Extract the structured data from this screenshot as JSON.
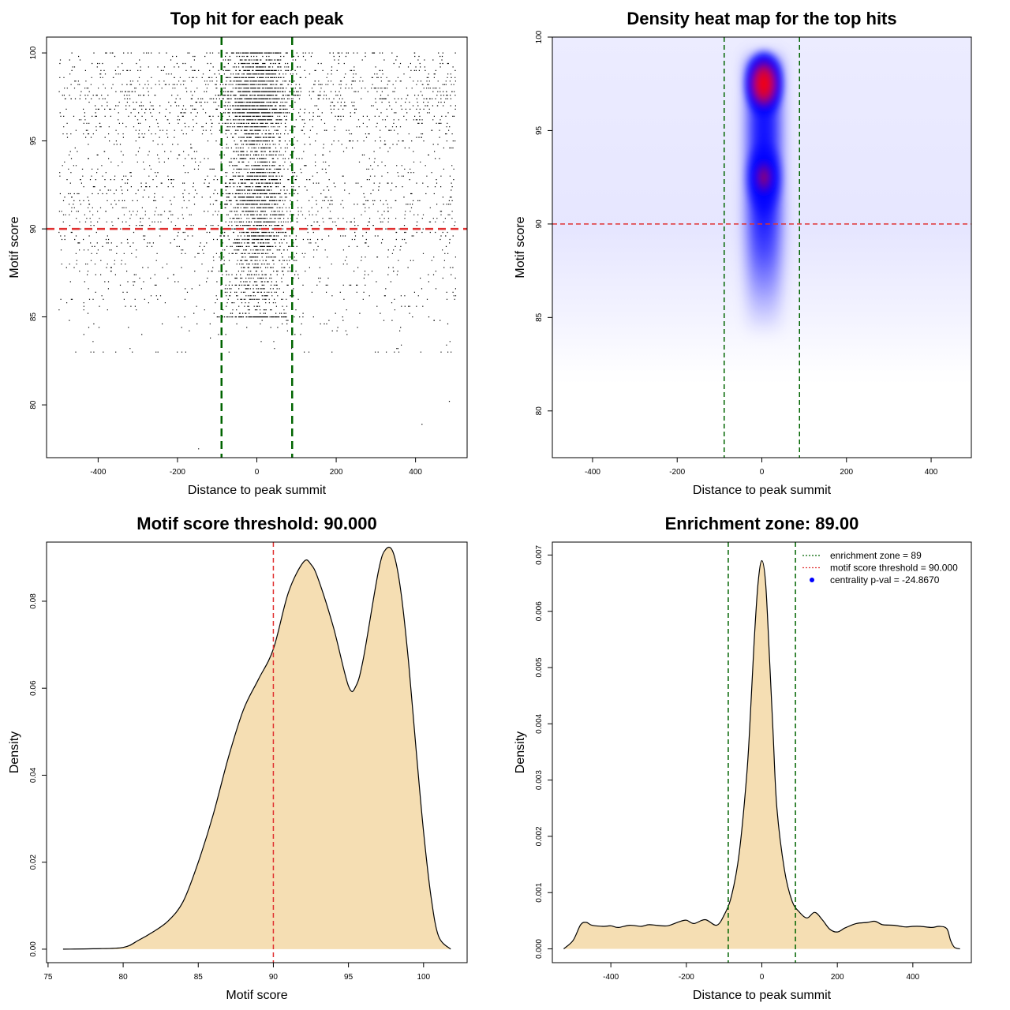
{
  "chart_data": [
    {
      "panel": "top-left",
      "type": "scatter",
      "title": "Top hit for each peak",
      "xlabel": "Distance to peak summit",
      "ylabel": "Motif score",
      "xlim": [
        -530,
        530
      ],
      "ylim": [
        77.0,
        100.9
      ],
      "xticks": [
        -400,
        -200,
        0,
        200,
        400
      ],
      "yticks": [
        80,
        85,
        90,
        95,
        100
      ],
      "hline": 90,
      "vlines": [
        -89,
        89
      ],
      "colors": {
        "points": "#000000",
        "hline": "#e03030",
        "vlines": "#006400"
      },
      "distribution": {
        "x_range": [
          -500,
          500
        ],
        "central_zone": [
          -89,
          89
        ],
        "central_x_spread_sd": 40,
        "score_range": [
          77.5,
          100
        ],
        "score_levels_step": 0.2,
        "n_background": 2600,
        "n_central": 3400,
        "outliers": [
          [
            -148,
            77.5
          ],
          [
            415,
            78.9
          ],
          [
            484,
            80.2
          ]
        ]
      }
    },
    {
      "panel": "top-right",
      "type": "heatmap",
      "title": "Density heat map for the top hits",
      "xlabel": "Distance to peak summit",
      "ylabel": "Motif score",
      "xlim": [
        -495,
        495
      ],
      "ylim": [
        77.5,
        100
      ],
      "xticks": [
        -400,
        -200,
        0,
        200,
        400
      ],
      "yticks": [
        80,
        85,
        90,
        95,
        100
      ],
      "hline": 90,
      "vlines": [
        -89,
        89
      ],
      "colorscale": [
        "#ffffff",
        "#0000ff",
        "#ff0000"
      ],
      "colors": {
        "hline": "#e03030",
        "vlines": "#006400"
      },
      "hotspots": [
        {
          "x": 5,
          "y": 97.5,
          "level": "peak"
        },
        {
          "x": 5,
          "y": 92.5,
          "level": "high"
        }
      ]
    },
    {
      "panel": "bottom-left",
      "type": "area",
      "title": "Motif score threshold: 90.000",
      "xlabel": "Motif score",
      "ylabel": "Density",
      "xlim": [
        74.9,
        102.9
      ],
      "ylim": [
        -0.0031,
        0.0936
      ],
      "xticks": [
        75,
        80,
        85,
        90,
        95,
        100
      ],
      "yticks": [
        0.0,
        0.02,
        0.04,
        0.06,
        0.08
      ],
      "ytick_labels": [
        "0.00",
        "0.02",
        "0.04",
        "0.06",
        "0.08"
      ],
      "vline": 90,
      "colors": {
        "fill": "#f5deb3",
        "line": "#000000",
        "vline": "#e03030"
      },
      "x": [
        76,
        78,
        80,
        81,
        82,
        83,
        84,
        85,
        86,
        87,
        88,
        89,
        90,
        91,
        92,
        92.5,
        93,
        94,
        95,
        95.5,
        96,
        97,
        97.5,
        98,
        98.5,
        99,
        99.5,
        100,
        100.5,
        101,
        101.8
      ],
      "y": [
        0.0,
        0.0001,
        0.0004,
        0.002,
        0.004,
        0.0065,
        0.011,
        0.02,
        0.031,
        0.044,
        0.055,
        0.062,
        0.069,
        0.082,
        0.089,
        0.0885,
        0.085,
        0.074,
        0.0605,
        0.0605,
        0.067,
        0.087,
        0.092,
        0.091,
        0.082,
        0.066,
        0.046,
        0.027,
        0.012,
        0.003,
        0.0
      ]
    },
    {
      "panel": "bottom-right",
      "type": "area",
      "title": "Enrichment zone: 89.00",
      "xlabel": "Distance to peak summit",
      "ylabel": "Density",
      "xlim": [
        -555,
        555
      ],
      "ylim": [
        -0.000245,
        0.00723
      ],
      "xticks": [
        -400,
        -200,
        0,
        200,
        400
      ],
      "yticks": [
        0.0,
        0.001,
        0.002,
        0.003,
        0.004,
        0.005,
        0.006,
        0.007
      ],
      "ytick_labels": [
        "0.000",
        "0.001",
        "0.002",
        "0.003",
        "0.004",
        "0.005",
        "0.006",
        "0.007"
      ],
      "vlines": [
        -89,
        89
      ],
      "colors": {
        "fill": "#f5deb3",
        "line": "#000000",
        "vlines": "#006400"
      },
      "legend": {
        "position": "top-right",
        "entries": [
          {
            "label": "enrichment zone = 89",
            "color": "#006400",
            "symbol": "dotted-line"
          },
          {
            "label": "motif score threshold = 90.000",
            "color": "#e03030",
            "symbol": "dotted-line"
          },
          {
            "label": "centrality p-val = -24.8670",
            "color": "#0000ff",
            "symbol": "dot"
          }
        ]
      },
      "x": [
        -525,
        -500,
        -480,
        -465,
        -450,
        -420,
        -400,
        -380,
        -350,
        -320,
        -300,
        -280,
        -250,
        -220,
        -200,
        -180,
        -150,
        -120,
        -100,
        -80,
        -60,
        -40,
        -30,
        -20,
        -10,
        0,
        10,
        20,
        30,
        40,
        60,
        80,
        100,
        120,
        140,
        160,
        180,
        200,
        220,
        250,
        280,
        300,
        320,
        350,
        380,
        400,
        420,
        450,
        470,
        490,
        500,
        510,
        525
      ],
      "y": [
        0.0,
        0.00015,
        0.00043,
        0.00047,
        0.00042,
        0.0004,
        0.00041,
        0.00038,
        0.00042,
        0.0004,
        0.00043,
        0.00042,
        0.00041,
        0.00048,
        0.00051,
        0.00045,
        0.00052,
        0.00042,
        0.0006,
        0.00095,
        0.0017,
        0.0031,
        0.0042,
        0.0055,
        0.0065,
        0.0069,
        0.0065,
        0.0052,
        0.0038,
        0.0025,
        0.0014,
        0.00085,
        0.00065,
        0.00055,
        0.00065,
        0.00052,
        0.00035,
        0.0003,
        0.00037,
        0.00045,
        0.00047,
        0.00049,
        0.00043,
        0.00042,
        0.00039,
        0.0004,
        0.0004,
        0.00038,
        0.0004,
        0.00036,
        0.00015,
        3e-05,
        0.0
      ]
    }
  ]
}
